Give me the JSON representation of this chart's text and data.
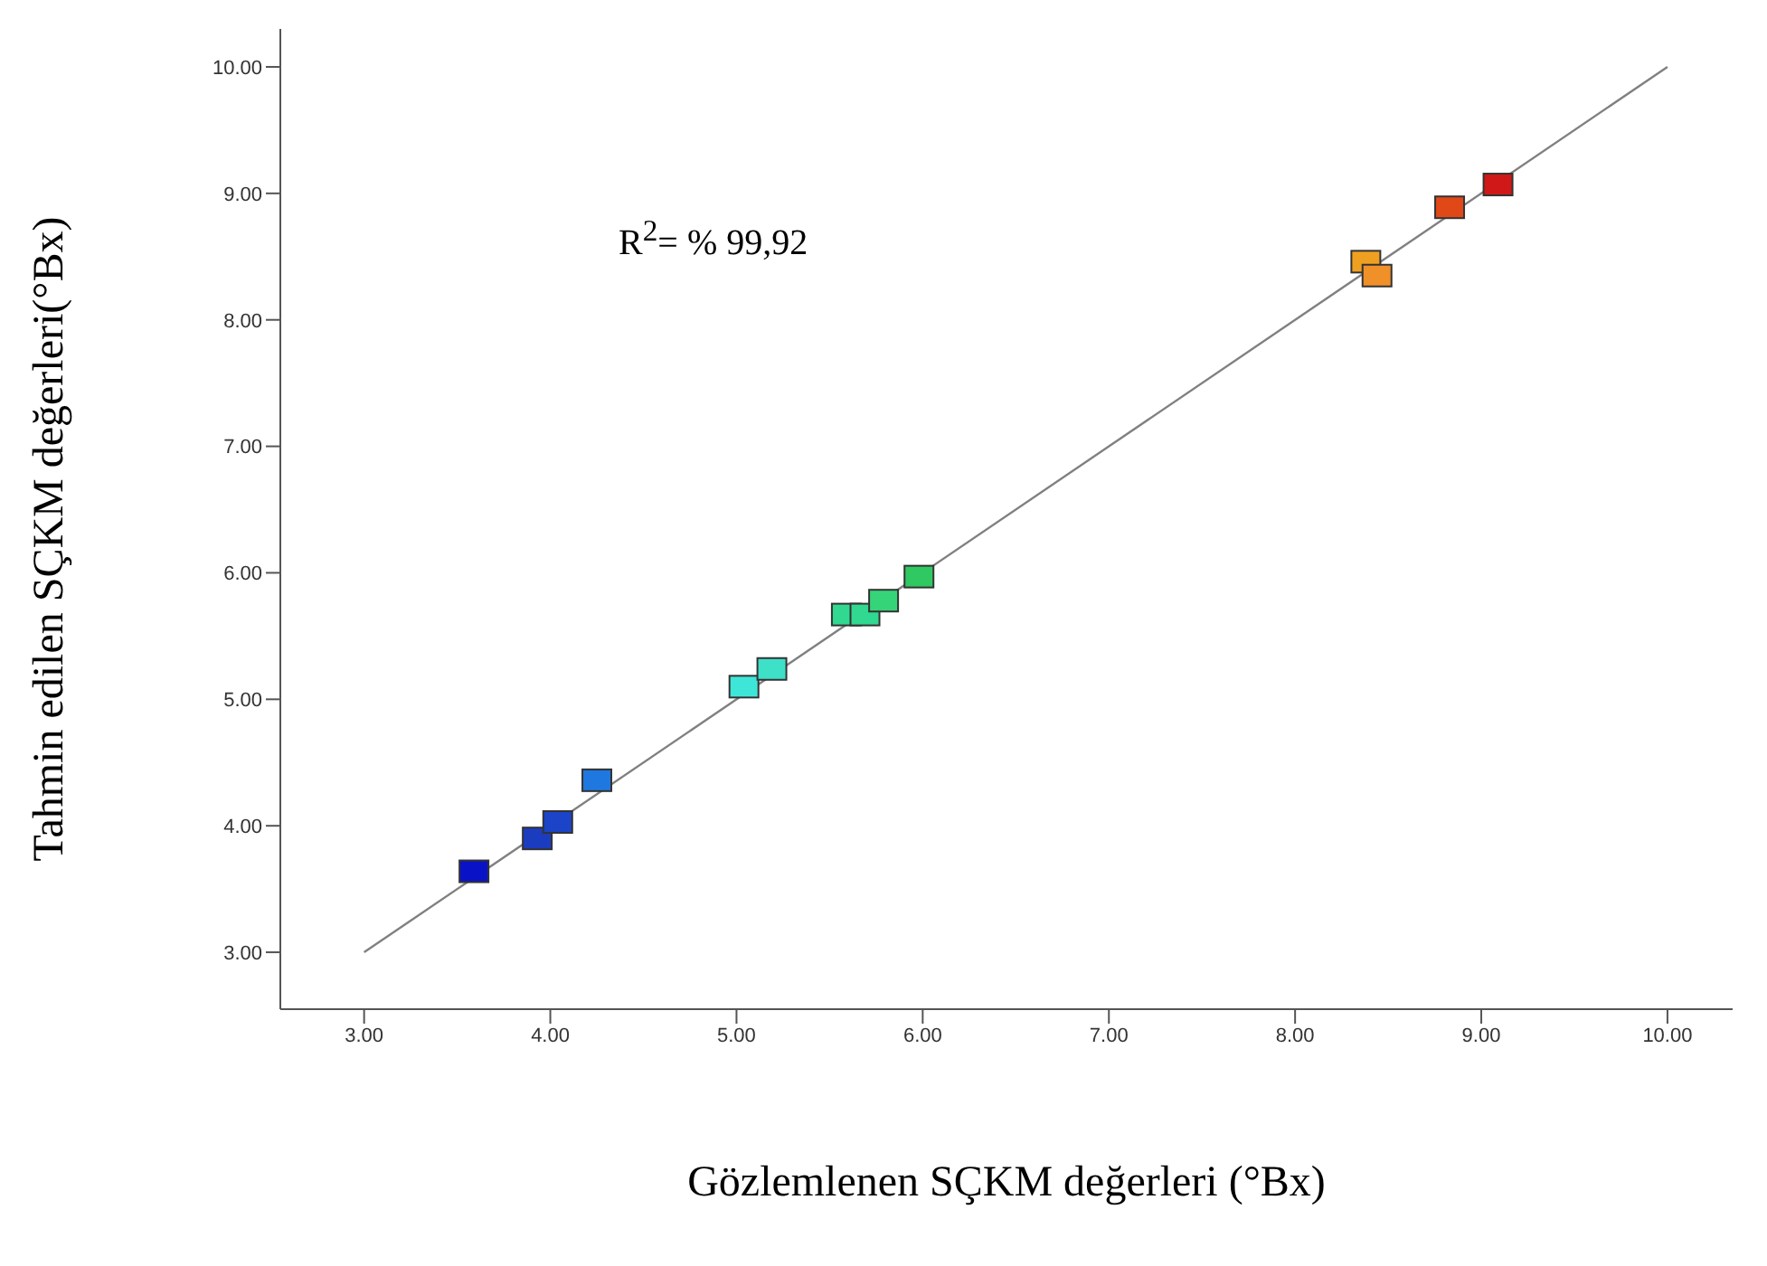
{
  "chart_data": {
    "type": "scatter",
    "xlabel": "Gözlemlenen SÇKM değerleri (°Bx)",
    "ylabel": "Tahmin edilen SÇKM değerleri(°Bx)",
    "annotations": [
      "R$^{2}$= % 99,92"
    ],
    "xlim": [
      2.55,
      10.35
    ],
    "ylim": [
      2.55,
      10.3
    ],
    "xticks": [
      {
        "value": 3,
        "label": "3.00"
      },
      {
        "value": 4,
        "label": "4.00"
      },
      {
        "value": 5,
        "label": "5.00"
      },
      {
        "value": 6,
        "label": "6.00"
      },
      {
        "value": 7,
        "label": "7.00"
      },
      {
        "value": 8,
        "label": "8.00"
      },
      {
        "value": 9,
        "label": "9.00"
      },
      {
        "value": 10,
        "label": "10.00"
      }
    ],
    "yticks": [
      {
        "value": 3,
        "label": "3.00"
      },
      {
        "value": 4,
        "label": "4.00"
      },
      {
        "value": 5,
        "label": "5.00"
      },
      {
        "value": 6,
        "label": "6.00"
      },
      {
        "value": 7,
        "label": "7.00"
      },
      {
        "value": 8,
        "label": "8.00"
      },
      {
        "value": 9,
        "label": "9.00"
      },
      {
        "value": 10,
        "label": "10.00"
      }
    ],
    "marker": "square",
    "series": [
      {
        "type": "line",
        "color": "#808080",
        "x": [
          3,
          10
        ],
        "values": [
          3,
          10
        ],
        "marker": "none"
      },
      {
        "x": [
          3.59,
          3.93,
          4.04,
          4.25,
          5.04,
          5.19,
          5.59,
          5.69,
          5.79,
          5.98,
          8.38,
          8.44,
          8.83,
          9.09
        ],
        "values": [
          3.64,
          3.9,
          4.03,
          4.36,
          5.1,
          5.24,
          5.67,
          5.67,
          5.78,
          5.97,
          8.46,
          8.35,
          8.89,
          9.07
        ],
        "colors": [
          "#0a12c8",
          "#1c3cc0",
          "#1c44c8",
          "#1e78e0",
          "#3ee6d8",
          "#3ee0c8",
          "#30d890",
          "#30d890",
          "#36d478",
          "#30c860",
          "#f0a020",
          "#f09028",
          "#e04818",
          "#d01818"
        ]
      }
    ]
  }
}
